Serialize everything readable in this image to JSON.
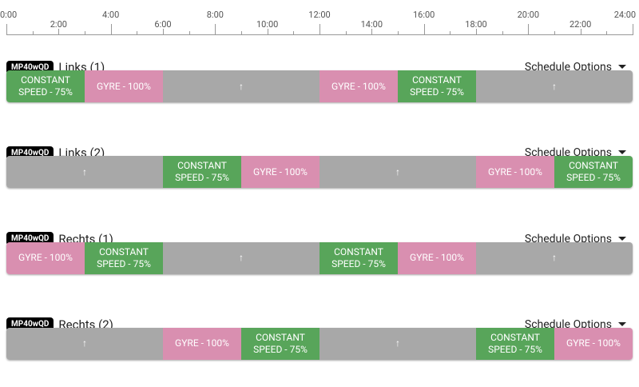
{
  "timeline": {
    "range": [
      0,
      24
    ],
    "ticks": [
      {
        "value": 0,
        "label": "0:00"
      },
      {
        "value": 2,
        "label": "2:00"
      },
      {
        "value": 4,
        "label": "4:00"
      },
      {
        "value": 6,
        "label": "6:00"
      },
      {
        "value": 8,
        "label": "8:00"
      },
      {
        "value": 10,
        "label": "10:00"
      },
      {
        "value": 12,
        "label": "12:00"
      },
      {
        "value": 14,
        "label": "14:00"
      },
      {
        "value": 16,
        "label": "16:00"
      },
      {
        "value": 18,
        "label": "18:00"
      },
      {
        "value": 20,
        "label": "20:00"
      },
      {
        "value": 22,
        "label": "22:00"
      },
      {
        "value": 24,
        "label": "24:00"
      }
    ],
    "minor_ticks": [
      1,
      3,
      5,
      7,
      9,
      11,
      13,
      15,
      17,
      19,
      21,
      23
    ]
  },
  "schedules": [
    {
      "badge": "MP40wQD",
      "name": "Links (1)",
      "options": "Schedule Options",
      "segments": [
        {
          "start": 0,
          "end": 3,
          "label": "CONSTANT SPEED - 75%",
          "color": "#58a55a"
        },
        {
          "start": 3,
          "end": 6,
          "label": "GYRE - 100%",
          "color": "#d98fb0"
        },
        {
          "start": 6,
          "end": 12,
          "label": "↑",
          "color": "#a8a8a8"
        },
        {
          "start": 12,
          "end": 15,
          "label": "GYRE - 100%",
          "color": "#d98fb0"
        },
        {
          "start": 15,
          "end": 18,
          "label": "CONSTANT SPEED - 75%",
          "color": "#58a55a"
        },
        {
          "start": 18,
          "end": 24,
          "label": "↑",
          "color": "#a8a8a8"
        }
      ]
    },
    {
      "badge": "MP40wQD",
      "name": "Links (2)",
      "options": "Schedule Options",
      "segments": [
        {
          "start": 0,
          "end": 6,
          "label": "↑",
          "color": "#a8a8a8"
        },
        {
          "start": 6,
          "end": 9,
          "label": "CONSTANT SPEED - 75%",
          "color": "#58a55a"
        },
        {
          "start": 9,
          "end": 12,
          "label": "GYRE - 100%",
          "color": "#d98fb0"
        },
        {
          "start": 12,
          "end": 18,
          "label": "↑",
          "color": "#a8a8a8"
        },
        {
          "start": 18,
          "end": 21,
          "label": "GYRE - 100%",
          "color": "#d98fb0"
        },
        {
          "start": 21,
          "end": 24,
          "label": "CONSTANT SPEED - 75%",
          "color": "#58a55a"
        }
      ]
    },
    {
      "badge": "MP40wQD",
      "name": "Rechts (1)",
      "options": "Schedule Options",
      "segments": [
        {
          "start": 0,
          "end": 3,
          "label": "GYRE - 100%",
          "color": "#d98fb0"
        },
        {
          "start": 3,
          "end": 6,
          "label": "CONSTANT SPEED - 75%",
          "color": "#58a55a"
        },
        {
          "start": 6,
          "end": 12,
          "label": "↑",
          "color": "#a8a8a8"
        },
        {
          "start": 12,
          "end": 15,
          "label": "CONSTANT SPEED - 75%",
          "color": "#58a55a"
        },
        {
          "start": 15,
          "end": 18,
          "label": "GYRE - 100%",
          "color": "#d98fb0"
        },
        {
          "start": 18,
          "end": 24,
          "label": "↑",
          "color": "#a8a8a8"
        }
      ]
    },
    {
      "badge": "MP40wQD",
      "name": "Rechts (2)",
      "options": "Schedule Options",
      "segments": [
        {
          "start": 0,
          "end": 6,
          "label": "↑",
          "color": "#a8a8a8"
        },
        {
          "start": 6,
          "end": 9,
          "label": "GYRE - 100%",
          "color": "#d98fb0"
        },
        {
          "start": 9,
          "end": 12,
          "label": "CONSTANT SPEED - 75%",
          "color": "#58a55a"
        },
        {
          "start": 12,
          "end": 18,
          "label": "↑",
          "color": "#a8a8a8"
        },
        {
          "start": 18,
          "end": 21,
          "label": "CONSTANT SPEED - 75%",
          "color": "#58a55a"
        },
        {
          "start": 21,
          "end": 24,
          "label": "GYRE - 100%",
          "color": "#d98fb0"
        }
      ]
    }
  ]
}
